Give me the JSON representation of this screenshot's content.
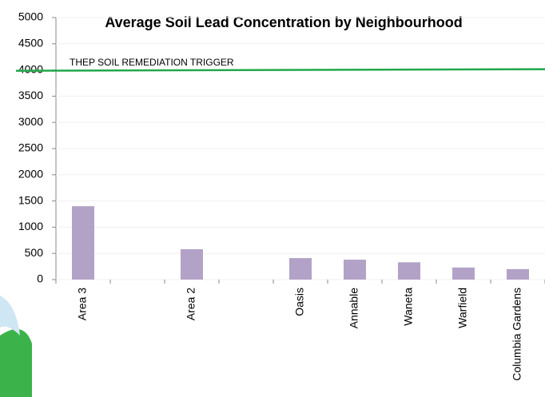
{
  "chart_data": {
    "type": "bar",
    "title": "Average Soil Lead Concentration  by Neighbourhood",
    "categories": [
      "Area 3",
      null,
      "Area 2",
      null,
      "Oasis",
      "Annable",
      "Waneta",
      "Warfield",
      "Columbia Gardens"
    ],
    "values": [
      1400,
      null,
      580,
      null,
      410,
      380,
      330,
      230,
      200
    ],
    "color": "#b3a2c7",
    "ylim": [
      0,
      5000
    ],
    "yticks": [
      0,
      500,
      1000,
      1500,
      2000,
      2500,
      3000,
      3500,
      4000,
      4500,
      5000
    ],
    "grid": true,
    "reference_line": {
      "value": 4000,
      "label": "THEP SOIL REMEDIATION TRIGGER",
      "color": "#21a84a"
    }
  }
}
